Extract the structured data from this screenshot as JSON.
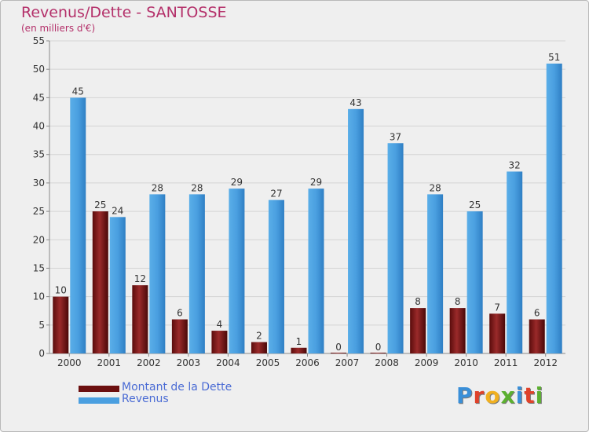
{
  "title": "Revenus/Dette - SANTOSSE",
  "subtitle": "(en milliers d'€)",
  "legend": [
    {
      "label": "Montant de la Dette",
      "color": "#6b0f0f"
    },
    {
      "label": "Revenus",
      "color": "#4a9fe0"
    }
  ],
  "logo": {
    "text": "Proxiti",
    "letter_colors": [
      "#3a8fd8",
      "#e0422a",
      "#f0b020",
      "#5cb030",
      "#3a8fd8",
      "#e0422a",
      "#5cb030"
    ]
  },
  "chart_data": {
    "type": "bar",
    "categories": [
      "2000",
      "2001",
      "2002",
      "2003",
      "2004",
      "2005",
      "2006",
      "2007",
      "2008",
      "2009",
      "2010",
      "2011",
      "2012"
    ],
    "series": [
      {
        "name": "Montant de la Dette",
        "color": "#6b0f0f",
        "values": [
          10,
          25,
          12,
          6,
          4,
          2,
          1,
          0,
          0,
          8,
          8,
          7,
          6
        ]
      },
      {
        "name": "Revenus",
        "color": "#4a9fe0",
        "values": [
          45,
          24,
          28,
          28,
          29,
          27,
          29,
          43,
          37,
          28,
          25,
          32,
          51
        ]
      }
    ],
    "ylim": [
      0,
      55
    ],
    "yticks": [
      0,
      5,
      10,
      15,
      20,
      25,
      30,
      35,
      40,
      45,
      50,
      55
    ],
    "grid": true,
    "legend_position": "bottom-left"
  }
}
